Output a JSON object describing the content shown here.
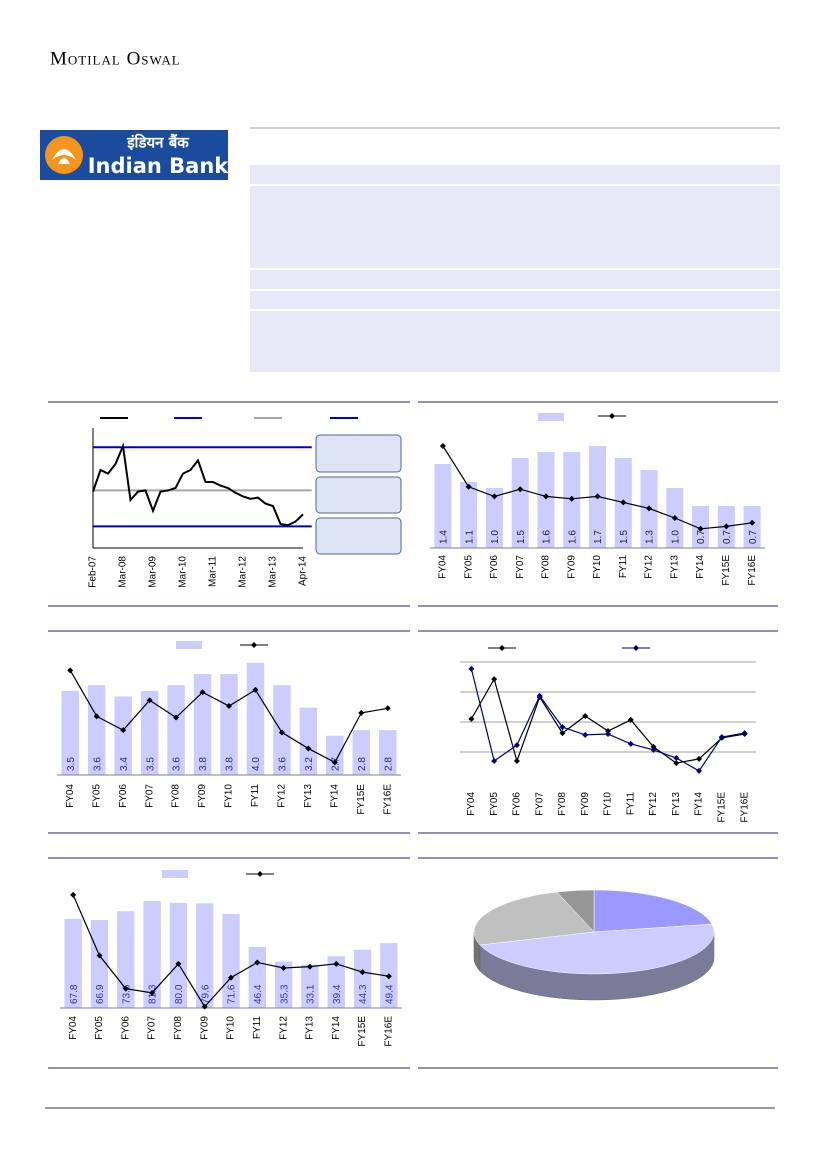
{
  "header": {
    "brand": "Motilal Oswal"
  },
  "logo": {
    "hindi": "इंडियन बैंक",
    "english": "Indian Bank"
  },
  "chart_data": [
    {
      "type": "line",
      "categories": [
        "Feb-07",
        null,
        null,
        null,
        "Mar-08",
        null,
        null,
        null,
        "Mar-09",
        null,
        null,
        null,
        "Mar-10",
        null,
        null,
        null,
        "Mar-11",
        null,
        null,
        null,
        "Mar-12",
        null,
        null,
        null,
        "Mar-13",
        null,
        null,
        null,
        "Apr-14"
      ],
      "series": [
        {
          "color": "#000000",
          "values": [
            47,
            65,
            62,
            70,
            85,
            40,
            47,
            48,
            31,
            47,
            48,
            50,
            62,
            65,
            73,
            55,
            55,
            52,
            50,
            46,
            43,
            41,
            42,
            37,
            35,
            20,
            19,
            22,
            28
          ]
        }
      ],
      "reference_lines": [
        {
          "color": "#0000cc",
          "value": 84
        },
        {
          "color": "#a6a6a6",
          "value": 48
        },
        {
          "color": "#0000cc",
          "value": 18
        }
      ],
      "ylim": [
        0,
        100
      ]
    },
    {
      "type": "combo",
      "categories": [
        "FY04",
        "FY05",
        "FY06",
        "FY07",
        "FY08",
        "FY09",
        "FY10",
        "FY11",
        "FY12",
        "FY13",
        "FY14",
        "FY15E",
        "FY16E"
      ],
      "series": [
        {
          "kind": "bar",
          "color": "#ccccff",
          "values": [
            1.4,
            1.1,
            1.0,
            1.5,
            1.6,
            1.6,
            1.7,
            1.5,
            1.3,
            1.0,
            0.7,
            0.7,
            0.7
          ],
          "value_labels": [
            "1.4",
            "1.1",
            "1.0",
            "1.5",
            "1.6",
            "1.6",
            "1.7",
            "1.5",
            "1.3",
            "1.0",
            "0.7",
            "0.7",
            "0.7"
          ]
        },
        {
          "kind": "line",
          "axis": "y2",
          "color": "#000000",
          "values": [
            85,
            51,
            43,
            49,
            43,
            41,
            43,
            38,
            33,
            25,
            16,
            18,
            21
          ]
        }
      ],
      "ylim": [
        0,
        2
      ],
      "y2lim": [
        0,
        100
      ]
    },
    {
      "type": "combo",
      "categories": [
        "FY04",
        "FY05",
        "FY06",
        "FY07",
        "FY08",
        "FY09",
        "FY10",
        "FY11",
        "FY12",
        "FY13",
        "FY14",
        "FY15E",
        "FY16E"
      ],
      "series": [
        {
          "kind": "bar",
          "color": "#ccccff",
          "values": [
            3.5,
            3.6,
            3.4,
            3.5,
            3.6,
            3.8,
            3.8,
            4.0,
            3.6,
            3.2,
            2.7,
            2.8,
            2.8
          ],
          "value_labels": [
            "3.5",
            "3.6",
            "3.4",
            "3.5",
            "3.6",
            "3.8",
            "3.8",
            "4.0",
            "3.6",
            "3.2",
            "2.7",
            "2.8",
            "2.8"
          ]
        },
        {
          "kind": "line",
          "axis": "y2",
          "color": "#000000",
          "values": [
            91,
            51,
            39,
            65,
            50,
            72,
            60,
            74,
            37,
            23,
            11,
            54,
            58
          ]
        }
      ],
      "ylim": [
        2,
        4.05
      ],
      "y2lim": [
        0,
        100
      ]
    },
    {
      "type": "combo",
      "categories": [
        "FY04",
        "FY05",
        "FY06",
        "FY07",
        "FY08",
        "FY09",
        "FY10",
        "FY11",
        "FY12",
        "FY13",
        "FY14",
        "FY15E",
        "FY16E"
      ],
      "series": [
        {
          "kind": "line",
          "color": "#000000",
          "values": [
            2.1,
            3.43,
            0.7,
            2.83,
            1.63,
            2.2,
            1.7,
            2.07,
            1.17,
            0.63,
            0.77,
            1.47,
            1.6
          ]
        },
        {
          "kind": "line",
          "color": "#000080",
          "values": [
            3.77,
            0.7,
            1.23,
            2.87,
            1.83,
            1.57,
            1.6,
            1.27,
            1.07,
            0.8,
            0.37,
            1.5,
            1.63
          ]
        }
      ],
      "ylim": [
        0,
        4
      ],
      "gridlines": [
        1,
        2,
        3,
        4
      ]
    },
    {
      "type": "combo",
      "categories": [
        "FY04",
        "FY05",
        "FY06",
        "FY07",
        "FY08",
        "FY09",
        "FY10",
        "FY11",
        "FY12",
        "FY13",
        "FY14",
        "FY15E",
        "FY16E"
      ],
      "series": [
        {
          "kind": "bar",
          "color": "#ccccff",
          "values": [
            67.8,
            66.9,
            73.6,
            81.3,
            80.0,
            79.6,
            71.6,
            46.4,
            35.3,
            33.1,
            39.4,
            44.3,
            49.4
          ],
          "value_labels": [
            "67.8",
            "66.9",
            "73.6",
            "81.3",
            "80.0",
            "79.6",
            "71.6",
            "46.4",
            "35.3",
            "33.1",
            "39.4",
            "44.3",
            "49.4"
          ]
        },
        {
          "kind": "line",
          "axis": "y2",
          "color": "#000000",
          "values": [
            82,
            38,
            14,
            11,
            32,
            1,
            22,
            33,
            29,
            30,
            32,
            26,
            23
          ]
        }
      ],
      "ylim": [
        0,
        105
      ],
      "y2lim": [
        0,
        100
      ]
    },
    {
      "type": "pie",
      "values": [
        22,
        48,
        25,
        5
      ],
      "colors": [
        "#9999ff",
        "#ccccff",
        "#c0c0c0",
        "#969696"
      ]
    }
  ]
}
